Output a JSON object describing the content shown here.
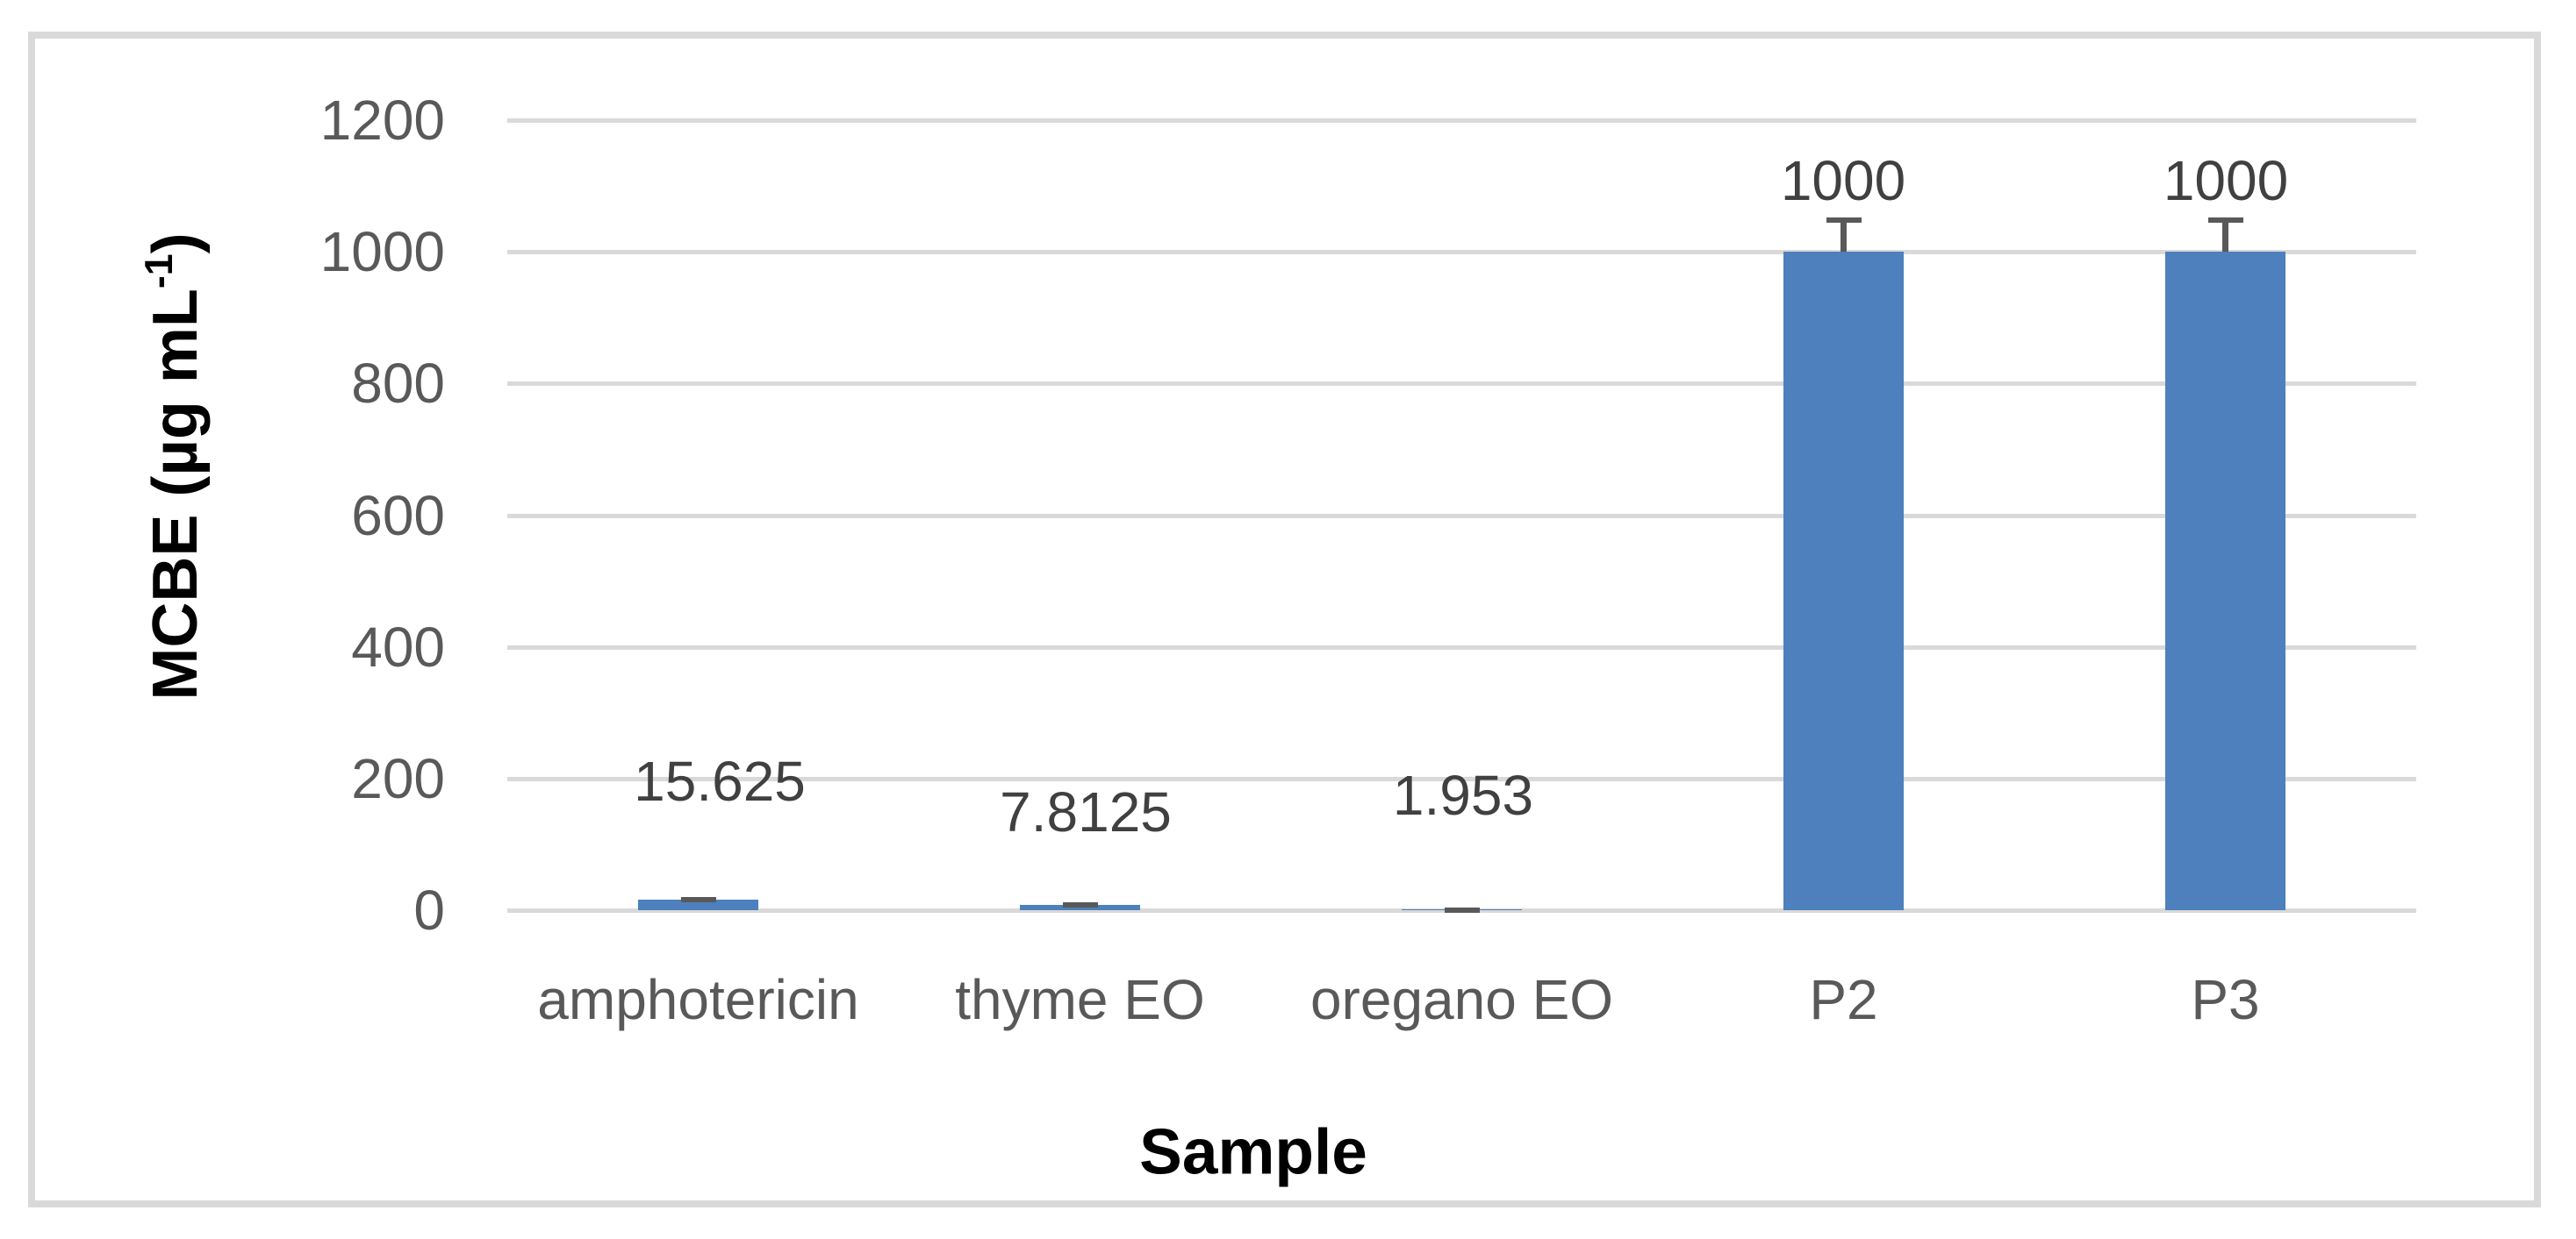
{
  "chart_data": {
    "type": "bar",
    "title": "",
    "categories": [
      "amphotericin",
      "thyme EO",
      "oregano EO",
      "P2",
      "P3"
    ],
    "values": [
      15.625,
      7.8125,
      1.953,
      1000,
      1000
    ],
    "data_labels": [
      "15.625",
      "7.8125",
      "1.953",
      "1000",
      "1000"
    ],
    "error_plus": [
      5,
      4,
      2,
      52,
      52
    ],
    "xlabel": "Sample",
    "ylabel": "MCBE (µg mL⁻¹)",
    "ylabel_parts": {
      "prefix": "MCBE (µg mL",
      "superscript": "-1",
      "suffix": ")"
    },
    "ylim": [
      0,
      1200
    ],
    "yticks": [
      0,
      200,
      400,
      600,
      800,
      1000,
      1200
    ],
    "grid": "horizontal-only",
    "legend": "none",
    "colors": {
      "bar": "#4d80bc",
      "error_bar": "#595959",
      "gridline": "#d9d9d9",
      "axis_line": "#d9d9d9",
      "frame_border": "#d9d9d9",
      "tick_label": "#595959",
      "category_label": "#595959",
      "data_label": "#404040",
      "axis_title": "#000000",
      "background": "#ffffff"
    }
  }
}
